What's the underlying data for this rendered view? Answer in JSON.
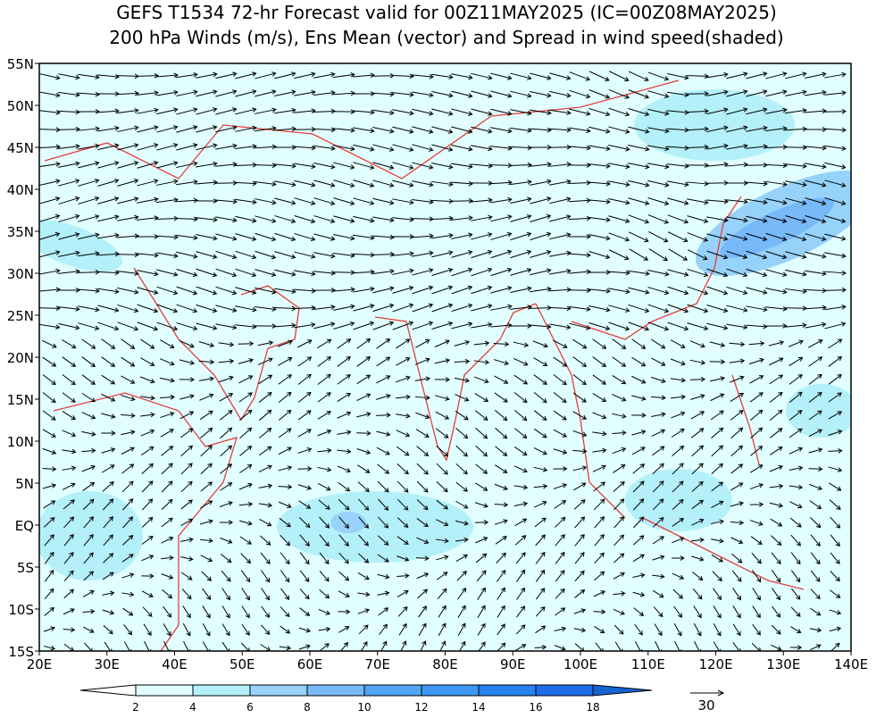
{
  "title": {
    "line1": "GEFS T1534 72-hr Forecast valid for 00Z11MAY2025 (IC=00Z08MAY2025)",
    "line2": "200 hPa Winds (m/s), Ens Mean (vector) and Spread in wind speed(shaded)"
  },
  "map": {
    "lon_labels": [
      "20E",
      "30E",
      "40E",
      "50E",
      "60E",
      "70E",
      "80E",
      "90E",
      "100E",
      "110E",
      "120E",
      "130E",
      "140E"
    ],
    "lat_labels": [
      "55N",
      "50N",
      "45N",
      "40N",
      "35N",
      "30N",
      "25N",
      "20N",
      "15N",
      "10N",
      "5N",
      "EQ",
      "5S",
      "10S",
      "15S"
    ]
  },
  "colorbar": {
    "labels": [
      "2",
      "4",
      "6",
      "8",
      "10",
      "12",
      "14",
      "16",
      "18"
    ],
    "colors": [
      "#ffffff",
      "#e1ffff",
      "#b4f0fa",
      "#96d2fa",
      "#78b9fa",
      "#50a5f5",
      "#3c97f5",
      "#2882f0",
      "#1e6eeb",
      "#1464d2"
    ]
  },
  "reference_vector": {
    "label": "30"
  }
}
